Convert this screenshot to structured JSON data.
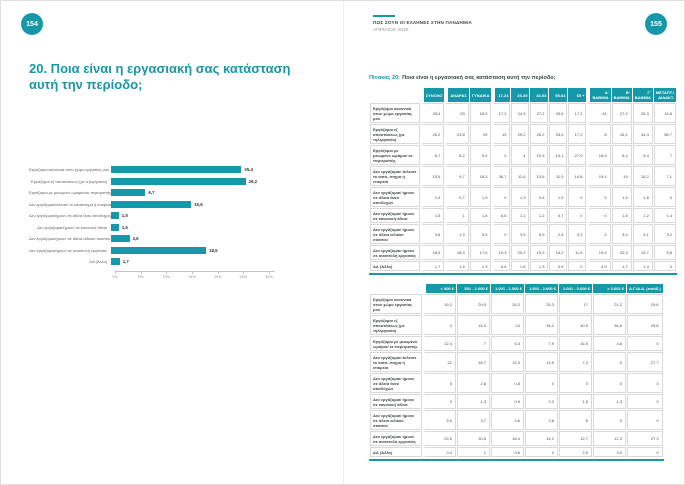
{
  "accent_color": "#1598a7",
  "left_page": {
    "page_number": "154",
    "title": "20. Ποια είναι η εργασιακή σας κατάσταση αυτή την περίοδο;",
    "chart_data": {
      "type": "bar",
      "orientation": "horizontal",
      "title": "20. Ποια είναι η εργασιακή σας κατάσταση αυτή την περίοδο;",
      "categories": [
        "Εργάζομαι κανονικά στον χώρο εργασίας μου",
        "Εργάζομαι εξ αποστάσεως (με τηλεργασία)",
        "Εργάζομαι με μειωμένο ωράριο/εκ περιτροπής",
        "Δεν εργάζομαι/έκλεισε το κατάστημα ή εταιρεία",
        "Δεν εργάζομαι/ήμουν σε άδεια άνευ αποδοχών",
        "Δεν εργάζομαι/ήμουν σε κανονική άδεια",
        "Δεν εργάζομαι/ήμουν σε άδεια ειδικού σκοπού",
        "Δεν εργάζομαι/ήμουν σε αναστολή εργασίας",
        "ΔΑ (Άλλο)"
      ],
      "values": [
        25.4,
        26.2,
        6.7,
        15.6,
        1.5,
        1.5,
        3.6,
        18.5,
        1.7
      ],
      "value_labels": [
        "25,4",
        "26,2",
        "6,7",
        "15,6",
        "1,5",
        "1,5",
        "3,6",
        "18,5",
        "1,7"
      ],
      "x_ticks": [
        "0%",
        "5%",
        "10%",
        "15%",
        "20%",
        "25%",
        "30%"
      ],
      "xlim": [
        0,
        30
      ],
      "bar_color": "#1598a7",
      "grid": false,
      "legend": false
    }
  },
  "right_page": {
    "page_number": "155",
    "header": {
      "line1": "ΠΩΣ ΖΟΥΝ ΟΙ ΕΛΛΗΝΕΣ ΣΤΗΝ ΠΑΝΔΗΜΙΑ",
      "line2": "ΑΠΡΙΛΙΟΣ 2020"
    },
    "caption": {
      "label": "Πίνακας 20:",
      "text": "Ποια είναι η εργασιακή σας κατάσταση αυτή την περίοδο;"
    },
    "table1": {
      "headers": [
        "ΣΥΝΟΛΟ",
        "ΑΝΔΡΑΣ",
        "ΓΥΝΑΙΚΑ",
        "17-24",
        "25-39",
        "40-54",
        "55-64",
        "65 +",
        "Α' ΒΑΘΜΙΑ",
        "Β' ΒΑΘΜΙΑ",
        "Γ' ΒΑΘΜΙΑ",
        "ΜΕΤΑΠΤ./ ΔΙΔΑΚΤ."
      ],
      "group_starts": [
        0,
        1,
        3,
        8
      ],
      "rows": [
        {
          "label": "Εργάζομαι κανονικά στον χώρο εργασίας μου",
          "values": [
            "25,4",
            "33",
            "18,9",
            "17,2",
            "24,9",
            "27,2",
            "25,6",
            "17,2",
            "24",
            "27,2",
            "25,3",
            "14,8"
          ]
        },
        {
          "label": "Εργάζομαι εξ αποστάσεως (με τηλεργασία)",
          "values": [
            "26,2",
            "23,8",
            "29",
            "19",
            "29,2",
            "26,2",
            "25,5",
            "17,2",
            "8",
            "16,1",
            "34,4",
            "58,7"
          ]
        },
        {
          "label": "Εργάζομαι με μειωμένο ωράριο/ εκ περιτροπής",
          "values": [
            "6,7",
            "8,2",
            "5,4",
            "0",
            "4",
            "10,3",
            "14,1",
            "27,9",
            "18,5",
            "8,4",
            "5,4",
            "7"
          ]
        },
        {
          "label": "Δεν εργάζομαι/ έκλεισε το κατά- στημα ή εταιρεία",
          "values": [
            "15,6",
            "9,7",
            "18,3",
            "36,7",
            "11,6",
            "13,6",
            "11,5",
            "14,8",
            "19,4",
            "19",
            "15,2",
            "7,1"
          ]
        },
        {
          "label": "Δεν εργάζομαι/ ήμουν σε άδεια άνευ αποδοχών",
          "values": [
            "1,5",
            "0,7",
            "1,9",
            "0",
            "1,3",
            "0,6",
            "1,5",
            "0",
            "0",
            "1,5",
            "1,8",
            "0"
          ]
        },
        {
          "label": "Δεν εργάζομαι/ ήμουν σε κανονική άδεια",
          "values": [
            "1,5",
            "1",
            "1,6",
            "6,6",
            "1,1",
            "1,2",
            "0,7",
            "0",
            "0",
            "1,8",
            "1,2",
            "1,4"
          ]
        },
        {
          "label": "Δεν εργάζομαι/ ήμουν σε άδεια ειδικού σκοπού",
          "values": [
            "3,6",
            "1,9",
            "5,5",
            "0",
            "3,5",
            "5,9",
            "2,4",
            "3,3",
            "0",
            "3,4",
            "4,1",
            "3,2"
          ]
        },
        {
          "label": "Δεν εργάζομαι/ ήμουν σε αναστολή εργασίας",
          "values": [
            "18,5",
            "18,9",
            "17,6",
            "19,3",
            "20,2",
            "15,3",
            "18,2",
            "11,5",
            "19,4",
            "20,3",
            "15,7",
            "9,8"
          ]
        },
        {
          "label": "ΔΑ (Άλλο)",
          "values": [
            "1,7",
            "1,5",
            "1,9",
            "6,6",
            "1,8",
            "1,3",
            "0,9",
            "0",
            "3,9",
            "1,7",
            "1,4",
            "0"
          ]
        }
      ]
    },
    "table2": {
      "headers": [
        "< 500 €",
        "501 - 1.000 €",
        "1.001 - 1.500 €",
        "1.501 - 2.000 €",
        "2.001 - 3.000 €",
        "> 3.001 €",
        "Δ.Γ./Δ.Α. (εισόδ.)"
      ],
      "group_starts": [
        0
      ],
      "rows": [
        {
          "label": "Εργάζομαι κανονικά στον χώρο εργασίας μου",
          "values": [
            "19,2",
            "29,5",
            "29,2",
            "25,3",
            "17",
            "21,2",
            "29,6"
          ]
        },
        {
          "label": "Εργάζομαι εξ αποστάσεως (με τηλεργασία)",
          "values": [
            "4",
            "15,3",
            "24",
            "34,2",
            "40,9",
            "54,6",
            "25,6"
          ]
        },
        {
          "label": "Εργάζομαι με μειωμένο ωράριο/ εκ περιτροπής",
          "values": [
            "12,4",
            "7",
            "6,3",
            "7,9",
            "16,5",
            "4,8",
            "0"
          ]
        },
        {
          "label": "Δεν εργάζομαι/ έκλεισε το κατά- στημα ή εταιρεία",
          "values": [
            "22",
            "18,7",
            "13,3",
            "13,9",
            "7,2",
            "0",
            "27,7"
          ]
        },
        {
          "label": "Δεν εργάζομαι/ ήμουν σε άδεια άνευ αποδοχών",
          "values": [
            "5",
            "2,8",
            "0,8",
            "0",
            "0",
            "0",
            "0"
          ]
        },
        {
          "label": "Δεν εργάζομαι/ ήμουν σε κανονική άδεια",
          "values": [
            "0",
            "1,3",
            "0,9",
            "2,3",
            "1,5",
            "1,3",
            "0"
          ]
        },
        {
          "label": "Δεν εργάζομαι/ ήμουν σε άδεια ειδικού σκοπού",
          "values": [
            "5,5",
            "3,7",
            "4,6",
            "3,8",
            "6",
            "0",
            "0"
          ]
        },
        {
          "label": "Δεν εργάζομαι/ ήμουν σε αναστολή εργασίας",
          "values": [
            "29,5",
            "20,6",
            "18,4",
            "14,2",
            "12,7",
            "12,3",
            "27,3"
          ]
        },
        {
          "label": "ΔΑ (Άλλο)",
          "values": [
            "0,4",
            "1",
            "0,6",
            "0",
            "2,5",
            "3,9",
            "0"
          ]
        }
      ]
    }
  }
}
